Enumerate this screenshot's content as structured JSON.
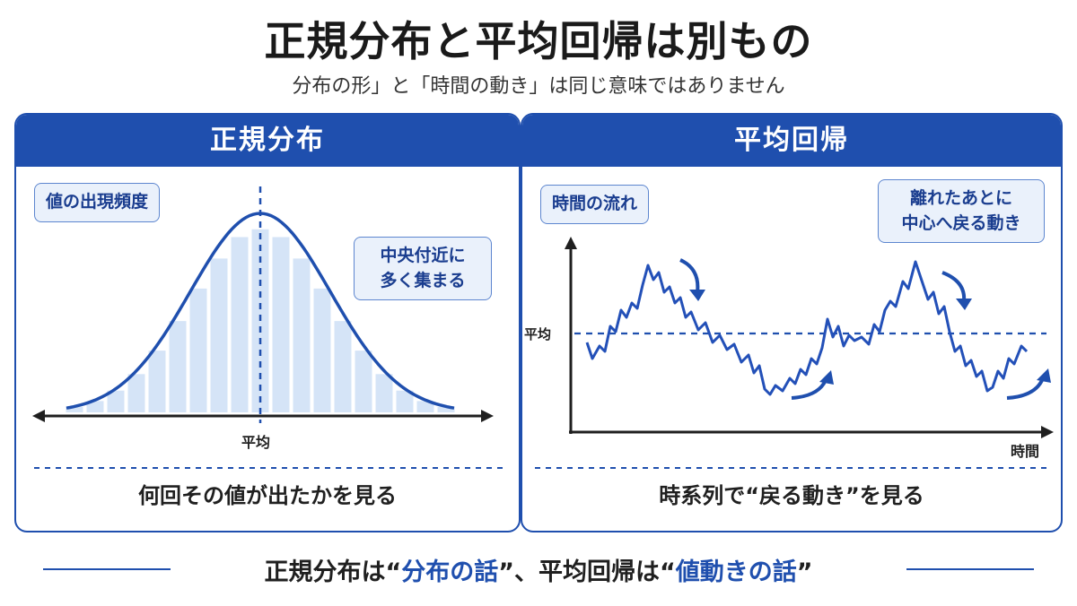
{
  "title": "正規分布と平均回帰は別もの",
  "subtitle": "分布の形」と「時間の動き」は同じ意味ではありません",
  "left_panel": {
    "header": "正規分布",
    "callout_frequency": "値の出現頻度",
    "callout_center_line1": "中央付近に",
    "callout_center_line2": "多く集まる",
    "mean_label": "平均",
    "caption": "何回その値が出たかを見る"
  },
  "right_panel": {
    "header": "平均回帰",
    "callout_time_flow": "時間の流れ",
    "callout_return_line1": "離れたあとに",
    "callout_return_line2": "中心へ戻る動き",
    "mean_label": "平均",
    "x_axis_label": "時間",
    "caption": "時系列で“戻る動き”を見る"
  },
  "footer": {
    "part1": "正規分布は“",
    "accent1": "分布の話",
    "part2": "”、平均回帰は“",
    "accent2": "値動きの話",
    "part3": "”"
  },
  "colors": {
    "primary": "#1f4fae",
    "line": "#2350b8",
    "bar_fill": "#d5e4f7",
    "callout_bg": "#eaf1fb"
  },
  "icons": [
    "double-arrow-axis-icon",
    "down-curved-arrow-icon",
    "up-curved-arrow-icon"
  ]
}
